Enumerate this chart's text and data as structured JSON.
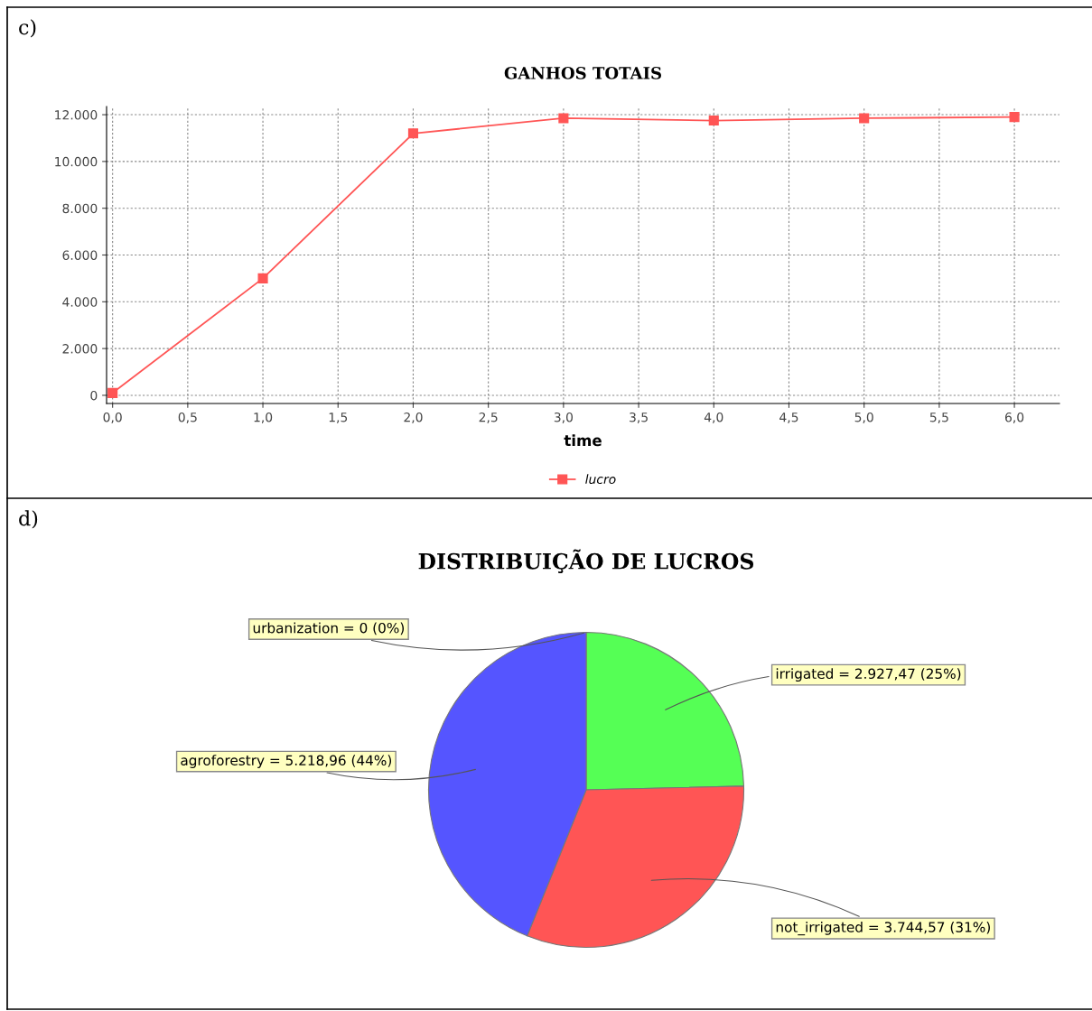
{
  "chart_data": [
    {
      "type": "line",
      "title": "GANHOS TOTAIS",
      "xlabel": "time",
      "annotations": [
        "c)"
      ],
      "x": [
        0,
        1,
        2,
        3,
        4,
        5,
        6
      ],
      "series": [
        {
          "name": "lucro",
          "color": "#ff5555",
          "values": [
            100,
            5000,
            11200,
            11850,
            11750,
            11850,
            11900
          ]
        }
      ],
      "xlim": [
        -0.04,
        6.3
      ],
      "ylim": [
        -350,
        12350
      ],
      "xticks": [
        {
          "value": 0,
          "label": "0,0"
        },
        {
          "value": 0.5,
          "label": "0,5"
        },
        {
          "value": 1,
          "label": "1,0"
        },
        {
          "value": 1.5,
          "label": "1,5"
        },
        {
          "value": 2,
          "label": "2,0"
        },
        {
          "value": 2.5,
          "label": "2,5"
        },
        {
          "value": 3,
          "label": "3,0"
        },
        {
          "value": 3.5,
          "label": "3,5"
        },
        {
          "value": 4,
          "label": "4,0"
        },
        {
          "value": 4.5,
          "label": "4,5"
        },
        {
          "value": 5,
          "label": "5,0"
        },
        {
          "value": 5.5,
          "label": "5,5"
        },
        {
          "value": 6,
          "label": "6,0"
        }
      ],
      "yticks": [
        0,
        {
          "value": 2000,
          "label": "2.000"
        },
        {
          "value": 4000,
          "label": "4.000"
        },
        {
          "value": 6000,
          "label": "6.000"
        },
        {
          "value": 8000,
          "label": "8.000"
        },
        {
          "value": 10000,
          "label": "10.000"
        },
        {
          "value": 12000,
          "label": "12.000"
        }
      ],
      "grid": true,
      "legend": "bottom",
      "marker": "square",
      "line_style": "solid"
    },
    {
      "type": "pie",
      "title": "DISTRIBUIÇÃO DE LUCROS",
      "annotations": [
        "d)"
      ],
      "categories": [
        "urbanization = 0 (0%)",
        "irrigated = 2.927,47 (25%)",
        "not_irrigated = 3.744,57 (31%)",
        "agroforestry = 5.218,96 (44%)"
      ],
      "values": [
        0,
        2927.47,
        3744.57,
        5218.96
      ],
      "colors": [
        "#ffff55",
        "#55ff55",
        "#ff5555",
        "#5555ff"
      ]
    }
  ]
}
